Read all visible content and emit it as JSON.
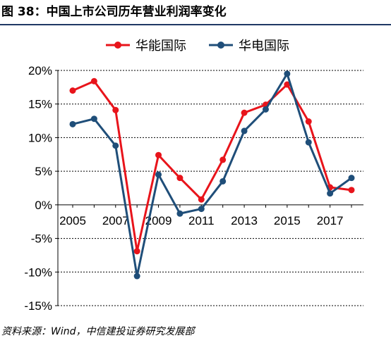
{
  "figure": {
    "title": "图 38：中国上市公司历年营业利润率变化",
    "source": "资料来源：Wind，中信建投证券研究发展部"
  },
  "chart_data": {
    "type": "line",
    "x": [
      2005,
      2006,
      2007,
      2008,
      2009,
      2010,
      2011,
      2012,
      2013,
      2014,
      2015,
      2016,
      2017,
      2018
    ],
    "x_tick_labels": [
      "2005",
      "2007",
      "2009",
      "2011",
      "2013",
      "2015",
      "2017"
    ],
    "x_tick_values": [
      2005,
      2007,
      2009,
      2011,
      2013,
      2015,
      2017
    ],
    "y_tick_labels": [
      "20%",
      "15%",
      "10%",
      "5%",
      "0%",
      "-5%",
      "-10%",
      "-15%"
    ],
    "y_tick_values": [
      20,
      15,
      10,
      5,
      0,
      -5,
      -10,
      -15
    ],
    "ylim": [
      -15,
      20
    ],
    "xlim": [
      2005,
      2018
    ],
    "grid": true,
    "legend": "top-center",
    "series": [
      {
        "name": "华能国际",
        "color": "#e8141b",
        "values": [
          17.0,
          18.4,
          14.1,
          -6.9,
          7.4,
          4.0,
          0.8,
          6.7,
          13.7,
          14.9,
          17.9,
          12.4,
          2.6,
          2.2
        ]
      },
      {
        "name": "华电国际",
        "color": "#1f4e79",
        "values": [
          12.0,
          12.8,
          8.8,
          -10.6,
          4.5,
          -1.3,
          -0.6,
          3.5,
          11.0,
          14.2,
          19.5,
          9.3,
          1.7,
          4.0
        ]
      }
    ]
  }
}
